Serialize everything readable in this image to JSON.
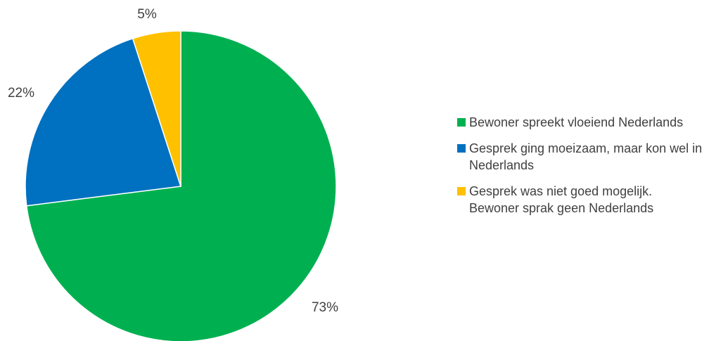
{
  "chart_data": {
    "type": "pie",
    "categories": [
      "Bewoner spreekt vloeiend Nederlands",
      "Gesprek ging moeizaam, maar kon wel in Nederlands",
      "Gesprek was niet goed mogelijk. Bewoner sprak geen Nederlands"
    ],
    "values": [
      73,
      22,
      5
    ],
    "labels": [
      "73%",
      "22%",
      "5%"
    ],
    "colors": [
      "#00B050",
      "#0070C0",
      "#FFC000"
    ],
    "legend_position": "right",
    "start_angle": "12 o'clock",
    "direction": "clockwise"
  },
  "legend": {
    "items": [
      {
        "label": "Bewoner spreekt vloeiend Nederlands",
        "color": "#00B050"
      },
      {
        "label": "Gesprek ging moeizaam, maar kon wel in Nederlands",
        "color": "#0070C0"
      },
      {
        "label": "Gesprek was niet goed mogelijk. Bewoner sprak geen Nederlands",
        "color": "#FFC000"
      }
    ]
  }
}
